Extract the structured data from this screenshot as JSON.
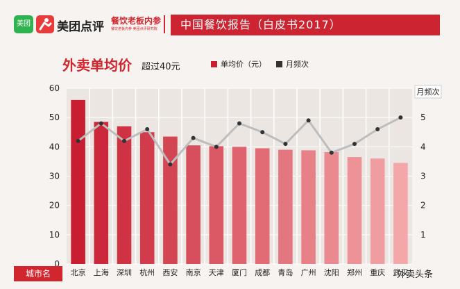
{
  "header": {
    "logo_left": "美团",
    "brand": "美团点评",
    "sub_brand": "餐饮老板内参",
    "sub_small": "餐饮老板内参·美团点评研究院",
    "banner": "中国餐饮报告（白皮书2017）"
  },
  "colors": {
    "bar_dark": "#c81e32",
    "bar_light": "#f3a7a9",
    "line": "#bdbdbd",
    "marker": "#333333",
    "grid": "#ffffff",
    "plot_bg": "#ece6e3"
  },
  "chart_data": {
    "type": "bar",
    "title": "外卖单均价",
    "subtitle": "超过40元",
    "xlabel": "城市名",
    "ylabel": "",
    "y2label": "月频次",
    "ylim": [
      0,
      60
    ],
    "y2lim": [
      0,
      6
    ],
    "yticks": [
      "0",
      "10",
      "20",
      "30",
      "40",
      "50",
      "60"
    ],
    "y2ticks": [
      "1",
      "2",
      "3",
      "4",
      "5"
    ],
    "categories": [
      "北京",
      "上海",
      "深圳",
      "杭州",
      "西安",
      "南京",
      "天津",
      "厦门",
      "成都",
      "青岛",
      "广州",
      "沈阳",
      "郑州",
      "重庆",
      "武汉"
    ],
    "series": [
      {
        "name": "单均价（元）",
        "type": "bar",
        "values": [
          56,
          48.5,
          47,
          45,
          43.5,
          40.5,
          40.2,
          40,
          39.5,
          39,
          38.8,
          38.2,
          36.5,
          36,
          34.5
        ]
      },
      {
        "name": "月频次",
        "type": "line",
        "values": [
          4.2,
          4.8,
          4.2,
          4.6,
          3.4,
          4.3,
          4.0,
          4.8,
          4.5,
          4.1,
          4.9,
          3.8,
          4.1,
          4.6,
          5.0
        ]
      }
    ]
  },
  "watermark": "外卖头条"
}
